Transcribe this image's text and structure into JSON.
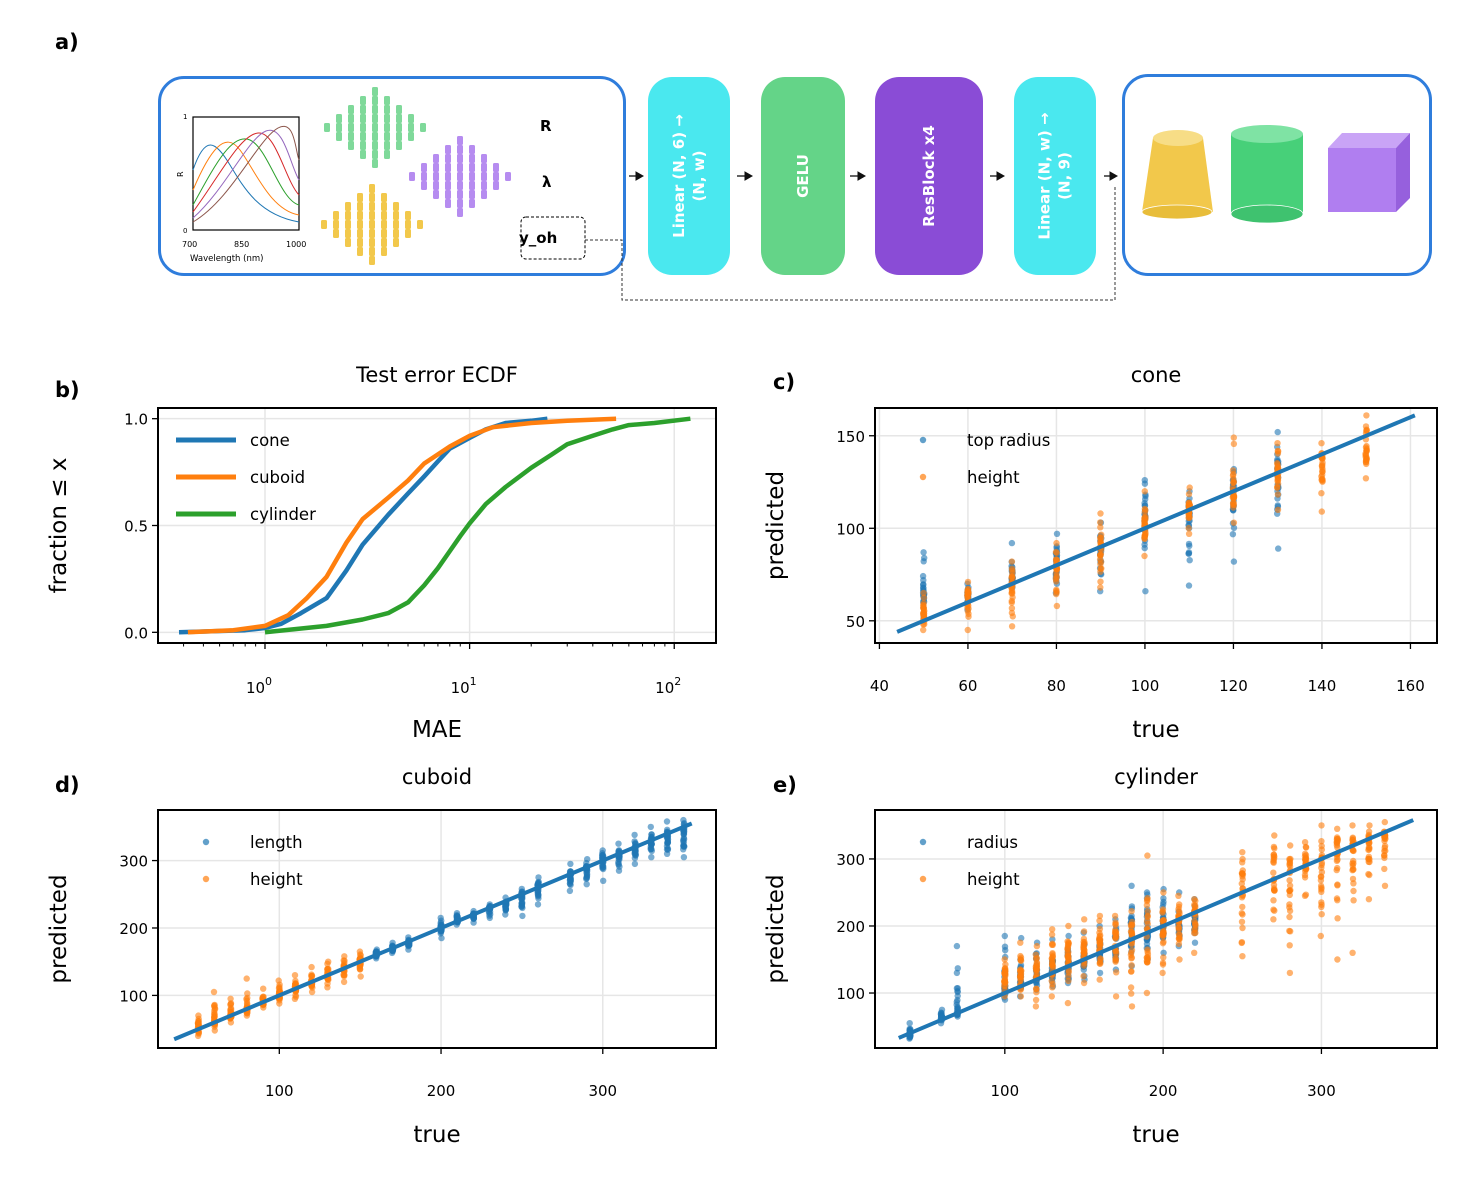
{
  "panel_labels": {
    "a": "a)",
    "b": "b)",
    "c": "c)",
    "d": "d)",
    "e": "e)"
  },
  "diagram": {
    "input_labels": {
      "R": "R",
      "lambda": "λ",
      "y_oh": "y_oh"
    },
    "mini_plot": {
      "y_top": "1",
      "y_bottom": "0",
      "y_label": "R",
      "x_ticks": [
        "700",
        "850",
        "1000"
      ],
      "x_label": "Wavelength (nm)"
    },
    "blocks": [
      {
        "label": "Linear (N, 6) →\n(N, w)",
        "color": "#4ae8ef"
      },
      {
        "label": "GELU",
        "color": "#64d488"
      },
      {
        "label": "ResBlock x4",
        "color": "#8a4cd6"
      },
      {
        "label": "Linear (N, w) →\n(N, 9)",
        "color": "#4ae8ef"
      }
    ],
    "shape_colors": {
      "cone": "#f2c84b",
      "cylinder": "#47d079",
      "cuboid": "#b07ef0",
      "frame": "#2f7ddc"
    }
  },
  "chart_data": [
    {
      "id": "b",
      "type": "line",
      "title": "Test error ECDF",
      "xlabel": "MAE",
      "ylabel": "fraction ≤ x",
      "xscale": "log",
      "xlim": [
        0.3,
        160
      ],
      "ylim": [
        -0.05,
        1.05
      ],
      "xticks": [
        "10^0",
        "10^1",
        "10^2"
      ],
      "yticks": [
        "0.0",
        "0.5",
        "1.0"
      ],
      "legend_position": "upper-left",
      "series": [
        {
          "name": "cone",
          "color": "#1f77b4",
          "x": [
            0.38,
            0.8,
            1.0,
            1.2,
            1.5,
            2.0,
            2.5,
            3.0,
            4.0,
            5.0,
            6.0,
            7.0,
            8.0,
            10.0,
            12.0,
            15.0,
            20.0,
            24.0
          ],
          "y": [
            0.0,
            0.01,
            0.02,
            0.04,
            0.09,
            0.16,
            0.29,
            0.41,
            0.55,
            0.65,
            0.73,
            0.8,
            0.86,
            0.91,
            0.95,
            0.98,
            0.99,
            1.0
          ]
        },
        {
          "name": "cuboid",
          "color": "#ff7f0e",
          "x": [
            0.42,
            0.7,
            1.0,
            1.3,
            1.6,
            2.0,
            2.5,
            3.0,
            4.0,
            5.0,
            6.0,
            8.0,
            10.0,
            13.0,
            20.0,
            30.0,
            52.0
          ],
          "y": [
            0.0,
            0.01,
            0.03,
            0.08,
            0.16,
            0.26,
            0.42,
            0.53,
            0.63,
            0.71,
            0.79,
            0.87,
            0.92,
            0.96,
            0.98,
            0.99,
            1.0
          ]
        },
        {
          "name": "cylinder",
          "color": "#2ca02c",
          "x": [
            1.0,
            2.0,
            3.0,
            4.0,
            5.0,
            6.0,
            7.0,
            8.0,
            9.0,
            10.0,
            12.0,
            15.0,
            20.0,
            25.0,
            30.0,
            40.0,
            50.0,
            60.0,
            80.0,
            120.0
          ],
          "y": [
            0.0,
            0.03,
            0.06,
            0.09,
            0.14,
            0.22,
            0.3,
            0.38,
            0.45,
            0.51,
            0.6,
            0.68,
            0.77,
            0.83,
            0.88,
            0.92,
            0.95,
            0.97,
            0.98,
            1.0
          ]
        }
      ]
    },
    {
      "id": "c",
      "type": "scatter",
      "title": "cone",
      "xlabel": "true",
      "ylabel": "predicted",
      "xlim": [
        39,
        166
      ],
      "ylim": [
        38,
        165
      ],
      "xticks": [
        40,
        60,
        80,
        100,
        120,
        140,
        160
      ],
      "yticks": [
        50,
        100,
        150
      ],
      "legend_position": "upper-left",
      "identity_line": [
        44,
        161
      ],
      "series": [
        {
          "name": "top radius",
          "color": "#1f77b4",
          "x": [
            50,
            60,
            70,
            80,
            90,
            100,
            110,
            120,
            130
          ],
          "spread": [
            [
              52,
              87
            ],
            [
              56,
              70
            ],
            [
              68,
              92
            ],
            [
              65,
              97
            ],
            [
              66,
              103
            ],
            [
              66,
              126
            ],
            [
              69,
              120
            ],
            [
              82,
              132
            ],
            [
              89,
              152
            ]
          ],
          "y": [
            66,
            63,
            74,
            82,
            88,
            103,
            107,
            117,
            130
          ]
        },
        {
          "name": "height",
          "color": "#ff7f0e",
          "x": [
            50,
            60,
            70,
            80,
            90,
            100,
            110,
            120,
            130,
            140,
            150
          ],
          "spread": [
            [
              45,
              65
            ],
            [
              45,
              71
            ],
            [
              47,
              82
            ],
            [
              58,
              92
            ],
            [
              68,
              108
            ],
            [
              85,
              120
            ],
            [
              97,
              122
            ],
            [
              103,
              149
            ],
            [
              110,
              146
            ],
            [
              109,
              146
            ],
            [
              127,
              161
            ]
          ],
          "y": [
            54,
            60,
            70,
            78,
            90,
            101,
            110,
            120,
            130,
            137,
            140
          ]
        }
      ]
    },
    {
      "id": "d",
      "type": "scatter",
      "title": "cuboid",
      "xlabel": "true",
      "ylabel": "predicted",
      "xlim": [
        25,
        370
      ],
      "ylim": [
        22,
        375
      ],
      "xticks": [
        100,
        200,
        300
      ],
      "yticks": [
        100,
        200,
        300
      ],
      "legend_position": "upper-left",
      "identity_line": [
        35,
        355
      ],
      "series": [
        {
          "name": "length",
          "color": "#1f77b4",
          "x": [
            160,
            170,
            180,
            200,
            210,
            220,
            230,
            240,
            250,
            260,
            280,
            290,
            300,
            310,
            320,
            330,
            340,
            350
          ],
          "spread": [
            [
              155,
              168
            ],
            [
              163,
              178
            ],
            [
              168,
              186
            ],
            [
              185,
              215
            ],
            [
              205,
              222
            ],
            [
              208,
              225
            ],
            [
              215,
              235
            ],
            [
              220,
              245
            ],
            [
              218,
              258
            ],
            [
              235,
              275
            ],
            [
              255,
              295
            ],
            [
              265,
              302
            ],
            [
              270,
              315
            ],
            [
              285,
              325
            ],
            [
              295,
              338
            ],
            [
              305,
              350
            ],
            [
              310,
              358
            ],
            [
              305,
              360
            ]
          ],
          "y": [
            160,
            170,
            178,
            200,
            212,
            218,
            228,
            236,
            248,
            260,
            278,
            288,
            298,
            308,
            318,
            328,
            336,
            342
          ]
        },
        {
          "name": "height",
          "color": "#ff7f0e",
          "x": [
            50,
            60,
            70,
            80,
            90,
            100,
            110,
            120,
            130,
            140,
            150
          ],
          "spread": [
            [
              40,
              70
            ],
            [
              48,
              105
            ],
            [
              60,
              95
            ],
            [
              70,
              125
            ],
            [
              82,
              110
            ],
            [
              88,
              122
            ],
            [
              95,
              130
            ],
            [
              105,
              142
            ],
            [
              112,
              150
            ],
            [
              120,
              158
            ],
            [
              128,
              165
            ]
          ],
          "y": [
            55,
            63,
            72,
            81,
            91,
            101,
            111,
            120,
            130,
            140,
            150
          ]
        }
      ]
    },
    {
      "id": "e",
      "type": "scatter",
      "title": "cylinder",
      "xlabel": "true",
      "ylabel": "predicted",
      "xlim": [
        18,
        373
      ],
      "ylim": [
        18,
        373
      ],
      "xticks": [
        100,
        200,
        300
      ],
      "yticks": [
        100,
        200,
        300
      ],
      "legend_position": "upper-left",
      "identity_line": [
        33,
        358
      ],
      "series": [
        {
          "name": "radius",
          "color": "#1f77b4",
          "x": [
            40,
            60,
            70,
            100,
            110,
            120,
            130,
            140,
            150,
            160,
            170,
            180,
            190,
            200,
            210,
            220
          ],
          "spread": [
            [
              32,
              55
            ],
            [
              55,
              75
            ],
            [
              65,
              170
            ],
            [
              90,
              185
            ],
            [
              95,
              182
            ],
            [
              105,
              175
            ],
            [
              110,
              180
            ],
            [
              115,
              185
            ],
            [
              120,
              190
            ],
            [
              130,
              200
            ],
            [
              135,
              210
            ],
            [
              140,
              260
            ],
            [
              150,
              250
            ],
            [
              160,
              255
            ],
            [
              170,
              250
            ],
            [
              175,
              240
            ]
          ],
          "y": [
            40,
            62,
            70,
            110,
            118,
            125,
            133,
            142,
            152,
            162,
            170,
            185,
            192,
            200,
            205,
            210
          ]
        },
        {
          "name": "height",
          "color": "#ff7f0e",
          "x": [
            100,
            110,
            120,
            130,
            140,
            150,
            160,
            170,
            180,
            190,
            200,
            210,
            220,
            250,
            270,
            280,
            290,
            300,
            310,
            320,
            330,
            340
          ],
          "spread": [
            [
              95,
              150
            ],
            [
              95,
              175
            ],
            [
              80,
              170
            ],
            [
              95,
              195
            ],
            [
              85,
              200
            ],
            [
              115,
              210
            ],
            [
              120,
              215
            ],
            [
              95,
              215
            ],
            [
              80,
              222
            ],
            [
              100,
              305
            ],
            [
              130,
              250
            ],
            [
              150,
              245
            ],
            [
              160,
              240
            ],
            [
              155,
              310
            ],
            [
              210,
              335
            ],
            [
              130,
              320
            ],
            [
              245,
              325
            ],
            [
              185,
              350
            ],
            [
              150,
              345
            ],
            [
              160,
              350
            ],
            [
              240,
              350
            ],
            [
              260,
              355
            ]
          ],
          "y": [
            120,
            130,
            138,
            145,
            155,
            162,
            170,
            178,
            185,
            195,
            200,
            210,
            218,
            265,
            280,
            285,
            290,
            300,
            305,
            312,
            320,
            330
          ]
        }
      ]
    }
  ]
}
